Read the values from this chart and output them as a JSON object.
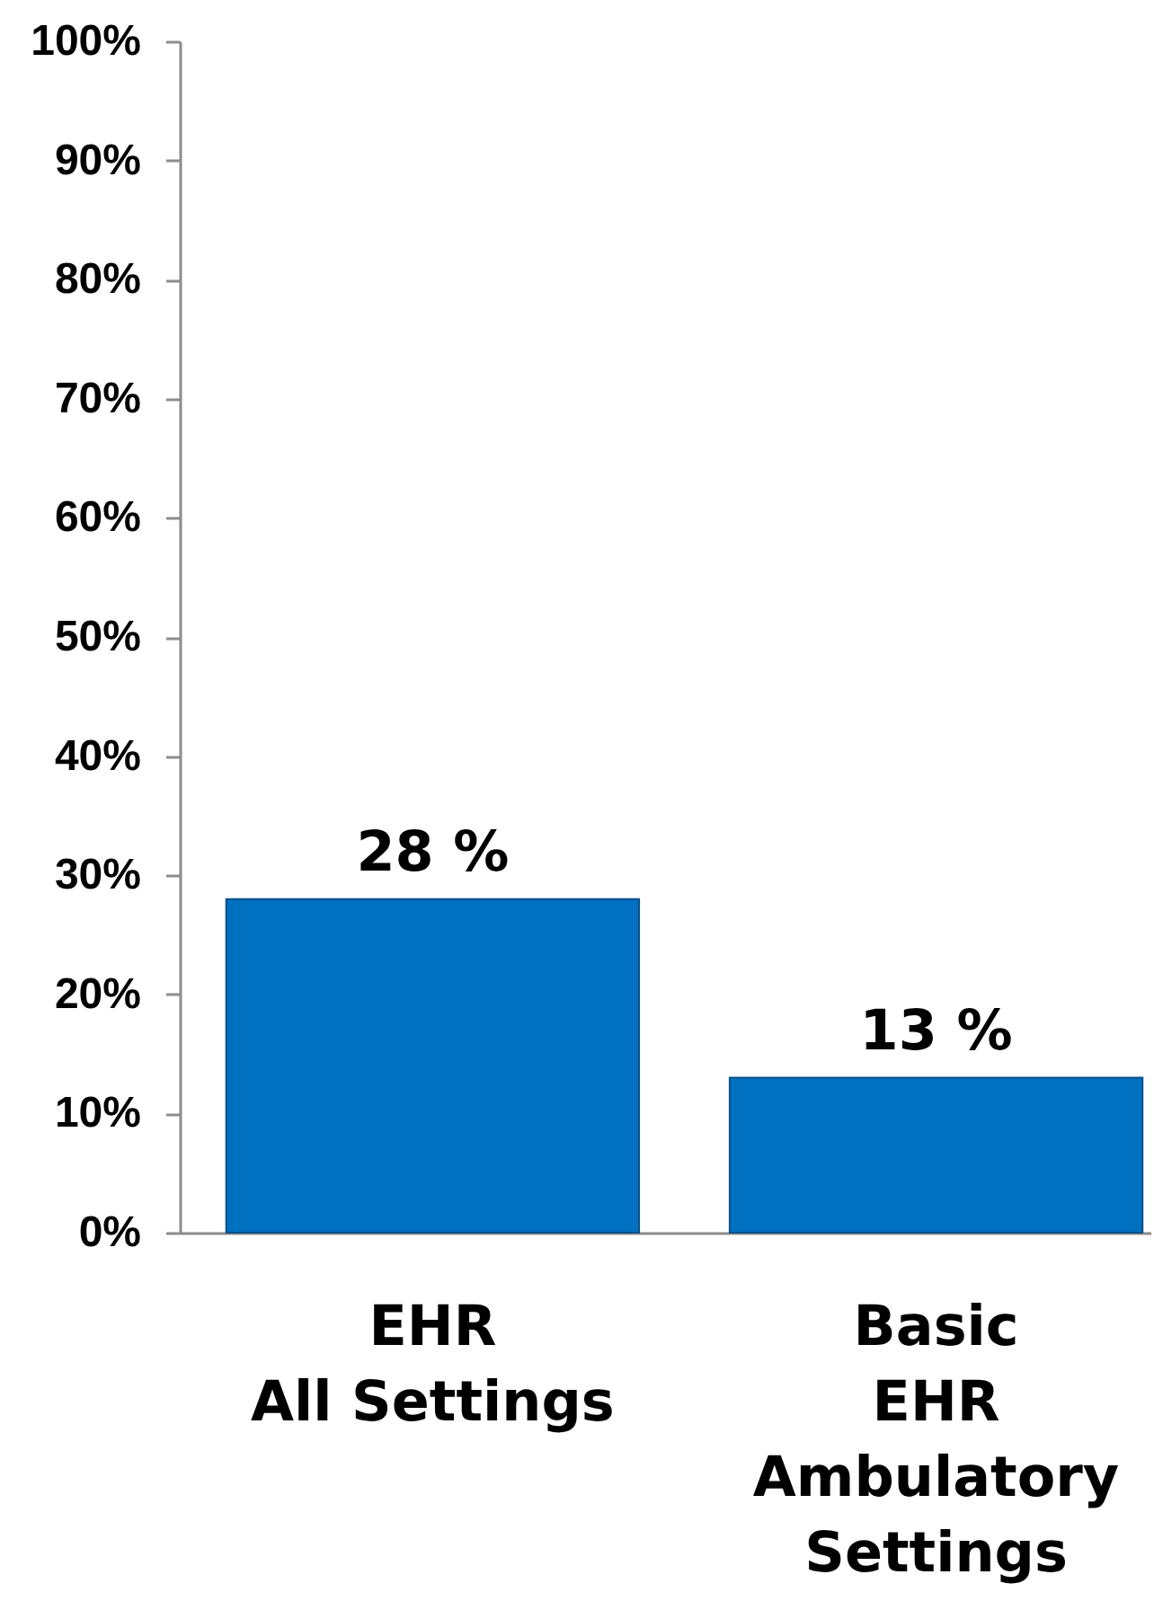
{
  "chart_data": {
    "type": "bar",
    "categories": [
      "EHR\nAll Settings",
      "Basic\nEHR\nAmbulatory\nSettings"
    ],
    "values": [
      28,
      13
    ],
    "value_labels": [
      "28 %",
      "13 %"
    ],
    "color": "#0070c0",
    "ylim": [
      0,
      100
    ],
    "yticks": [
      {
        "value": 0,
        "label": "0%"
      },
      {
        "value": 10,
        "label": "10%"
      },
      {
        "value": 20,
        "label": "20%"
      },
      {
        "value": 30,
        "label": "30%"
      },
      {
        "value": 40,
        "label": "40%"
      },
      {
        "value": 50,
        "label": "50%"
      },
      {
        "value": 60,
        "label": "60%"
      },
      {
        "value": 70,
        "label": "70%"
      },
      {
        "value": 80,
        "label": "80%"
      },
      {
        "value": 90,
        "label": "90%"
      },
      {
        "value": 100,
        "label": "100%"
      }
    ],
    "grid": false
  }
}
